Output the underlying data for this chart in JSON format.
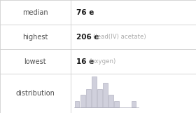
{
  "rows": [
    {
      "label": "median",
      "value": "76",
      "unit": "e",
      "note": ""
    },
    {
      "label": "highest",
      "value": "206",
      "unit": "e",
      "note": "(lead(IV) acetate)"
    },
    {
      "label": "lowest",
      "value": "16",
      "unit": "e",
      "note": "(oxygen)"
    },
    {
      "label": "distribution",
      "value": "",
      "unit": "",
      "note": ""
    }
  ],
  "hist_heights": [
    1,
    2,
    3,
    5,
    3,
    4,
    2,
    1,
    0,
    0,
    1
  ],
  "bar_color": "#d0d0dc",
  "bar_edge_color": "#a8a8b8",
  "background_color": "#ffffff",
  "label_color": "#505050",
  "value_color": "#1a1a1a",
  "note_color": "#aaaaaa",
  "line_color": "#d0d0d0",
  "col_split": 0.36,
  "label_fontsize": 7.0,
  "value_fontsize": 7.5,
  "note_fontsize": 6.2
}
